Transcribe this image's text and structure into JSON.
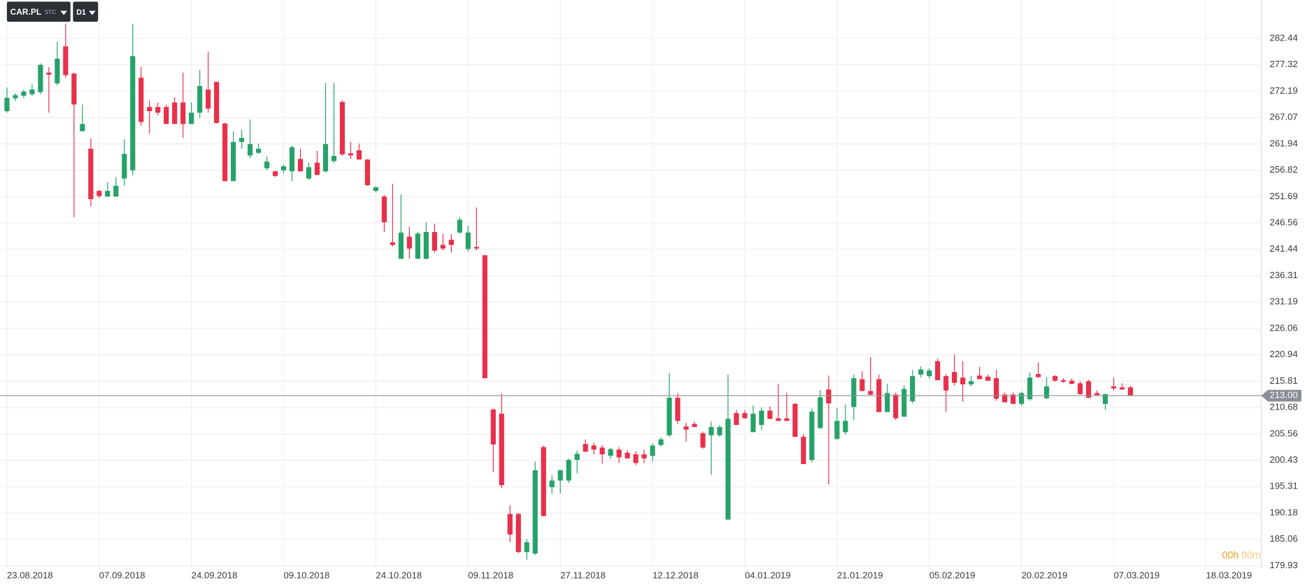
{
  "toolbar": {
    "symbol": "CAR.PL",
    "market": "STC",
    "interval": "D1"
  },
  "timer": {
    "hours": "00h",
    "minutes": "00m"
  },
  "chart_data": {
    "type": "candlestick",
    "up_color": "#26a269",
    "down_color": "#e8304a",
    "grid": true,
    "ylim": [
      179.44,
      289.91
    ],
    "yticks": [
      282.44,
      277.32,
      272.19,
      267.07,
      261.94,
      256.82,
      251.69,
      246.56,
      241.44,
      236.31,
      231.19,
      226.06,
      220.94,
      215.81,
      210.68,
      205.56,
      200.43,
      195.31,
      190.18,
      185.06,
      179.93
    ],
    "xlim": [
      -0.8,
      149.6
    ],
    "xticks": [
      {
        "value": 0,
        "label": "23.08.2018"
      },
      {
        "value": 11,
        "label": "07.09.2018"
      },
      {
        "value": 22,
        "label": "24.09.2018"
      },
      {
        "value": 33,
        "label": "09.10.2018"
      },
      {
        "value": 44,
        "label": "24.10.2018"
      },
      {
        "value": 55,
        "label": "09.11.2018"
      },
      {
        "value": 66,
        "label": "27.11.2018"
      },
      {
        "value": 77,
        "label": "12.12.2018"
      },
      {
        "value": 88,
        "label": "04.01.2019"
      },
      {
        "value": 99,
        "label": "21.01.2019"
      },
      {
        "value": 110,
        "label": "05.02.2019"
      },
      {
        "value": 121,
        "label": "20.02.2019"
      },
      {
        "value": 132,
        "label": "07.03.2019"
      },
      {
        "value": 143,
        "label": "18.03.2019"
      }
    ],
    "last_price": {
      "value": 213,
      "label": "213.00"
    },
    "open": [
      268.3,
      270.8,
      271.3,
      271.6,
      272.0,
      275.8,
      273.7,
      280.9,
      275.6,
      264.4,
      261.0,
      252.8,
      251.7,
      251.7,
      255.2,
      256.8,
      274.8,
      269.1,
      269.1,
      269.1,
      270.0,
      270.0,
      265.8,
      268.0,
      272.5,
      274.0,
      265.9,
      254.7,
      262.3,
      259.7,
      260.2,
      257.2,
      256.6,
      256.8,
      256.6,
      259.0,
      255.2,
      258.3,
      256.6,
      258.6,
      270.1,
      260.1,
      260.7,
      258.9,
      252.8,
      251.7,
      242.8,
      239.6,
      243.9,
      239.6,
      239.6,
      244.8,
      242.3,
      243.3,
      244.7,
      241.5,
      241.9,
      240.3,
      210.3,
      209.5,
      190.0,
      190.0,
      182.6,
      182.3,
      203.0,
      195.2,
      196.5,
      196.5,
      200.5,
      203.6,
      203.3,
      202.9,
      201.3,
      202.5,
      201.9,
      201.6,
      201.6,
      201.3,
      203.4,
      205.3,
      212.6,
      207.0,
      207.5,
      205.7,
      205.3,
      205.3,
      188.9,
      209.6,
      209.6,
      205.9,
      207.3,
      210.1,
      208.6,
      208.6,
      211.4,
      205.0,
      200.5,
      206.7,
      214.2,
      204.6,
      205.9,
      210.8,
      216.2,
      213.9,
      216.2,
      209.8,
      213.2,
      208.9,
      211.9,
      217.1,
      216.8,
      219.7,
      216.8,
      217.6,
      216.5,
      215.2,
      216.9,
      216.7,
      216.4,
      213.2,
      213.2,
      211.4,
      212.3,
      217.2,
      212.5,
      216.8,
      216.0,
      215.9,
      215.4,
      215.8,
      213.5,
      211.4,
      214.8,
      214.6,
      214.6
    ],
    "high": [
      272.9,
      271.8,
      272.5,
      273.5,
      277.6,
      276.9,
      281.8,
      285.3,
      275.8,
      269.6,
      263.0,
      253.0,
      254.5,
      255.5,
      262.8,
      285.3,
      276.9,
      270.4,
      270.0,
      269.6,
      271.0,
      275.8,
      270.0,
      276.3,
      279.9,
      274.0,
      266.0,
      264.4,
      264.7,
      266.7,
      262.0,
      259.5,
      256.8,
      257.9,
      261.6,
      261.0,
      258.3,
      260.6,
      273.8,
      273.8,
      270.4,
      262.3,
      262.0,
      259.0,
      253.7,
      252.0,
      254.2,
      252.1,
      245.8,
      244.8,
      246.7,
      246.4,
      244.5,
      244.4,
      247.7,
      246.0,
      249.6,
      240.3,
      210.5,
      213.4,
      191.7,
      190.2,
      185.1,
      200.2,
      203.3,
      197.5,
      198.6,
      200.8,
      202.3,
      204.5,
      203.8,
      203.4,
      202.9,
      203.0,
      202.4,
      202.2,
      202.5,
      203.7,
      204.9,
      217.4,
      213.5,
      207.7,
      208.0,
      206.0,
      208.0,
      207.3,
      217.1,
      210.2,
      210.2,
      211.1,
      210.7,
      210.9,
      215.3,
      213.5,
      211.6,
      205.5,
      210.5,
      214.1,
      216.9,
      210.6,
      211.3,
      217.1,
      217.8,
      220.5,
      217.1,
      215.3,
      213.6,
      215.0,
      218.0,
      218.7,
      218.3,
      220.2,
      217.2,
      221.0,
      219.7,
      216.8,
      218.6,
      217.1,
      218.0,
      213.6,
      213.6,
      213.8,
      217.5,
      219.5,
      216.6,
      217.0,
      216.4,
      216.3,
      215.8,
      216.1,
      214.0,
      213.4,
      216.5,
      215.4,
      214.9
    ],
    "low": [
      268.0,
      270.3,
      270.8,
      271.3,
      271.6,
      268.0,
      273.3,
      274.8,
      247.7,
      264.4,
      249.8,
      251.4,
      251.7,
      251.7,
      253.8,
      255.8,
      265.5,
      263.9,
      267.5,
      265.8,
      265.8,
      263.1,
      265.8,
      267.0,
      268.0,
      265.9,
      254.7,
      254.7,
      261.0,
      259.2,
      260.0,
      256.8,
      255.5,
      256.2,
      254.7,
      256.6,
      254.9,
      255.9,
      256.4,
      258.2,
      259.6,
      259.0,
      258.9,
      253.8,
      252.5,
      244.8,
      242.0,
      239.6,
      239.6,
      239.6,
      239.5,
      240.8,
      241.2,
      240.8,
      244.5,
      241.0,
      241.2,
      216.3,
      198.1,
      195.0,
      184.5,
      182.4,
      181.1,
      182.0,
      189.5,
      193.9,
      194.0,
      196.0,
      197.9,
      202.1,
      201.6,
      199.8,
      200.7,
      199.9,
      200.8,
      199.5,
      199.9,
      200.2,
      203.1,
      205.0,
      207.5,
      204.1,
      206.9,
      202.7,
      197.6,
      205.0,
      188.9,
      207.3,
      208.5,
      205.9,
      206.3,
      208.4,
      208.0,
      208.0,
      205.0,
      199.7,
      200.0,
      206.5,
      195.7,
      204.4,
      205.4,
      208.2,
      213.9,
      213.0,
      209.8,
      209.8,
      208.2,
      208.9,
      211.5,
      216.5,
      216.3,
      216.0,
      209.8,
      215.0,
      211.8,
      214.8,
      216.2,
      215.9,
      212.0,
      211.7,
      211.4,
      211.0,
      212.0,
      216.5,
      212.3,
      215.7,
      215.5,
      215.2,
      213.2,
      212.5,
      213.0,
      210.3,
      214.0,
      214.1,
      213.0
    ],
    "close": [
      270.9,
      271.4,
      272.1,
      272.5,
      277.3,
      275.4,
      278.5,
      275.3,
      269.6,
      265.8,
      251.2,
      251.8,
      252.8,
      253.8,
      260.0,
      279.0,
      266.2,
      268.3,
      268.0,
      265.8,
      265.8,
      265.8,
      268.0,
      273.2,
      268.8,
      266.0,
      254.7,
      262.3,
      263.1,
      261.9,
      261.0,
      258.5,
      255.7,
      257.6,
      261.3,
      256.6,
      257.4,
      255.9,
      261.9,
      259.6,
      259.9,
      259.7,
      258.9,
      253.9,
      253.5,
      246.7,
      242.3,
      244.7,
      241.6,
      244.5,
      244.8,
      241.2,
      241.6,
      242.3,
      247.2,
      244.7,
      241.6,
      216.4,
      203.5,
      195.6,
      186.0,
      182.6,
      184.5,
      198.5,
      189.6,
      196.5,
      198.5,
      200.5,
      201.7,
      202.1,
      202.5,
      201.6,
      202.6,
      201.0,
      200.8,
      199.9,
      200.8,
      203.3,
      204.5,
      212.6,
      208.1,
      206.4,
      206.9,
      202.9,
      206.9,
      206.9,
      208.5,
      207.3,
      208.6,
      209.5,
      210.1,
      208.5,
      208.1,
      208.1,
      205.0,
      199.7,
      209.9,
      212.7,
      211.5,
      208.1,
      208.1,
      216.4,
      213.9,
      213.2,
      209.8,
      213.5,
      208.6,
      214.3,
      216.8,
      218.1,
      217.9,
      216.0,
      214.0,
      215.5,
      215.2,
      215.8,
      216.2,
      215.9,
      212.4,
      211.7,
      211.4,
      213.5,
      216.5,
      216.6,
      214.8,
      215.9,
      215.7,
      215.3,
      213.3,
      212.6,
      213.1,
      213.3,
      214.4,
      214.2,
      213.0
    ]
  }
}
